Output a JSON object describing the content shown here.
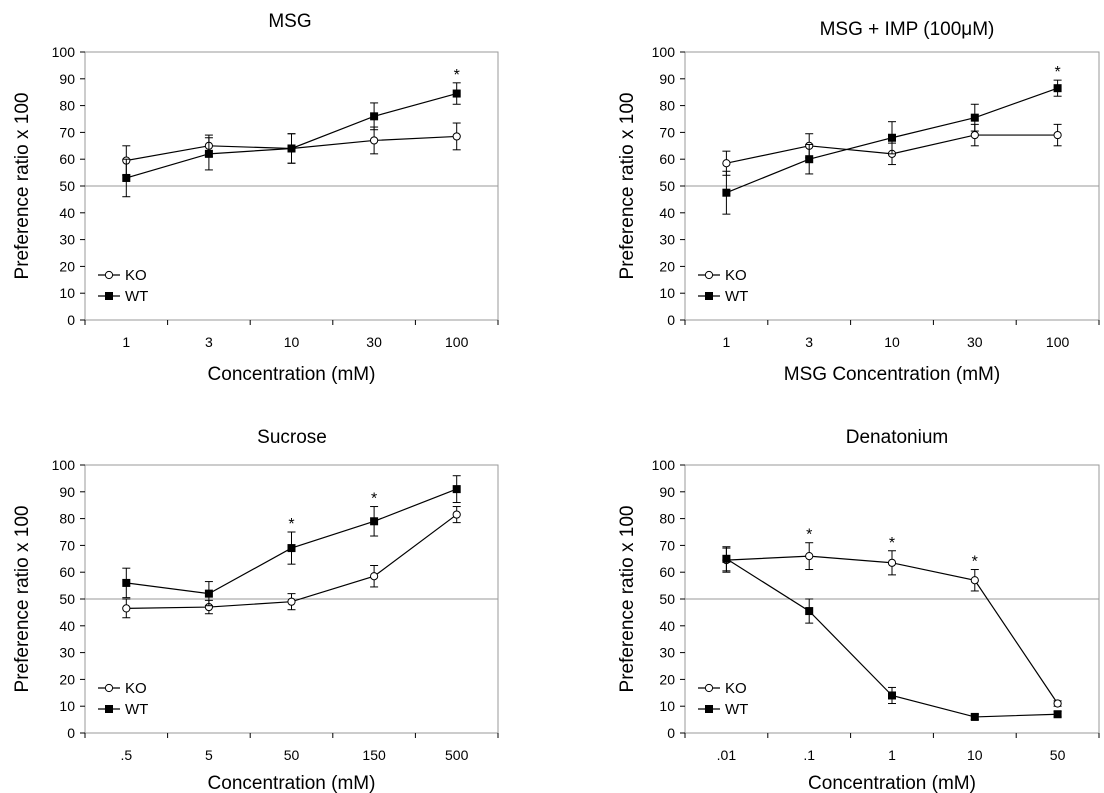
{
  "chart_data": [
    {
      "type": "line",
      "title": "MSG",
      "xlabel": "Concentration (mM)",
      "ylabel": "Preference ratio x 100",
      "ylim": [
        0,
        100
      ],
      "yticks": [
        0,
        10,
        20,
        30,
        40,
        50,
        60,
        70,
        80,
        90,
        100
      ],
      "categories": [
        "1",
        "3",
        "10",
        "30",
        "100"
      ],
      "reference_line": 50,
      "grid": false,
      "legend_position": "bottom-left",
      "series": [
        {
          "name": "KO",
          "marker": "open-circle",
          "values": [
            59.5,
            65,
            64,
            67,
            68.5
          ],
          "errors": [
            5.5,
            4,
            5.5,
            5,
            5
          ]
        },
        {
          "name": "WT",
          "marker": "filled-square",
          "values": [
            53,
            62,
            64,
            76,
            84.5
          ],
          "errors": [
            7,
            6,
            5.5,
            5,
            4
          ]
        }
      ],
      "significance": [
        "",
        "",
        "",
        "",
        "*"
      ]
    },
    {
      "type": "line",
      "title": "MSG + IMP (100μM)",
      "xlabel": "MSG Concentration (mM)",
      "ylabel": "Preference ratio x 100",
      "ylim": [
        0,
        100
      ],
      "yticks": [
        0,
        10,
        20,
        30,
        40,
        50,
        60,
        70,
        80,
        90,
        100
      ],
      "categories": [
        "1",
        "3",
        "10",
        "30",
        "100"
      ],
      "reference_line": 50,
      "grid": false,
      "legend_position": "bottom-left",
      "series": [
        {
          "name": "KO",
          "marker": "open-circle",
          "values": [
            58.5,
            65,
            62,
            69,
            69
          ],
          "errors": [
            4.5,
            4.5,
            4,
            4,
            4
          ]
        },
        {
          "name": "WT",
          "marker": "filled-square",
          "values": [
            47.5,
            60,
            68,
            75.5,
            86.5
          ],
          "errors": [
            8,
            5.5,
            6,
            5,
            3
          ]
        }
      ],
      "significance": [
        "",
        "",
        "",
        "",
        "*"
      ]
    },
    {
      "type": "line",
      "title": "Sucrose",
      "xlabel": "Concentration (mM)",
      "ylabel": "Preference ratio x 100",
      "ylim": [
        0,
        100
      ],
      "yticks": [
        0,
        10,
        20,
        30,
        40,
        50,
        60,
        70,
        80,
        90,
        100
      ],
      "categories": [
        ".5",
        "5",
        "50",
        "150",
        "500"
      ],
      "reference_line": 50,
      "grid": false,
      "legend_position": "bottom-left",
      "series": [
        {
          "name": "KO",
          "marker": "open-circle",
          "values": [
            46.5,
            47,
            49,
            58.5,
            81.5
          ],
          "errors": [
            3.5,
            2.5,
            3,
            4,
            3
          ]
        },
        {
          "name": "WT",
          "marker": "filled-square",
          "values": [
            56,
            52,
            69,
            79,
            91
          ],
          "errors": [
            5.5,
            4.5,
            6,
            5.5,
            5
          ]
        }
      ],
      "significance": [
        "",
        "",
        "*",
        "*",
        ""
      ]
    },
    {
      "type": "line",
      "title": "Denatonium",
      "xlabel": "Concentration (mM)",
      "ylabel": "Preference ratio x 100",
      "ylim": [
        0,
        100
      ],
      "yticks": [
        0,
        10,
        20,
        30,
        40,
        50,
        60,
        70,
        80,
        90,
        100
      ],
      "categories": [
        ".01",
        ".1",
        "1",
        "10",
        "50"
      ],
      "reference_line": 50,
      "grid": false,
      "legend_position": "bottom-left",
      "series": [
        {
          "name": "KO",
          "marker": "open-circle",
          "values": [
            64.5,
            66,
            63.5,
            57,
            11
          ],
          "errors": [
            4.5,
            5,
            4.5,
            4,
            1
          ]
        },
        {
          "name": "WT",
          "marker": "filled-square",
          "values": [
            65,
            45.5,
            14,
            6,
            7
          ],
          "errors": [
            4.5,
            4.5,
            3,
            1,
            1
          ]
        }
      ],
      "significance": [
        "",
        "*",
        "*",
        "*",
        ""
      ]
    }
  ]
}
